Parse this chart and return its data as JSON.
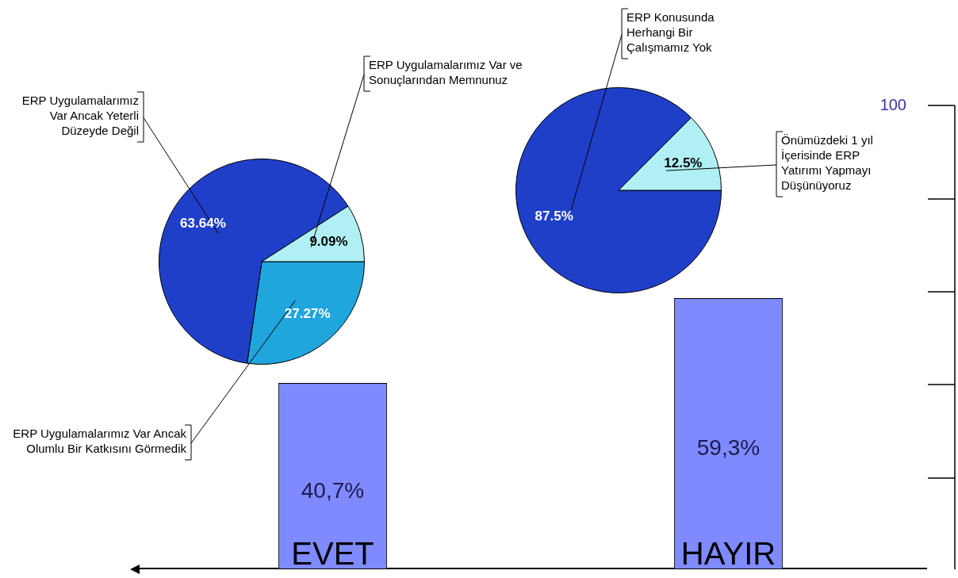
{
  "chart_data": [
    {
      "type": "bar",
      "categories": [
        "EVET",
        "HAYIR"
      ],
      "values": [
        40.7,
        59.3
      ],
      "color": "#7f8aff",
      "value_labels": [
        "40,7%",
        "59,3%"
      ],
      "annotations": [
        "100"
      ]
    },
    {
      "type": "pie",
      "categories": [
        "ERP Uygulamalarımız Var Ancak Olumlu Bir Katkısını Görmedik",
        "ERP Uygulamalarımız Var Ancak Yeterli Düzeyde Değil",
        "ERP Uygulamalarımız Var ve Sonuçlarından Memnunuz"
      ],
      "values": [
        27.27,
        63.64,
        9.09
      ],
      "colors": [
        "#1fa6dd",
        "#1f3fc9",
        "#b0f0f4"
      ],
      "value_labels": [
        "27.27%",
        "63.64%",
        "9.09%"
      ]
    },
    {
      "type": "pie",
      "categories": [
        "ERP Konusunda Herhangi Bir Çalışmamız Yok",
        "Önümüzdeki 1 yıl İçerisinde ERP Yatırımı Yapmayı Düşünüyoruz"
      ],
      "values": [
        87.5,
        12.5
      ],
      "colors": [
        "#1f3fc9",
        "#b0f0f4"
      ],
      "value_labels": [
        "87.5%",
        "12.5%"
      ]
    }
  ]
}
